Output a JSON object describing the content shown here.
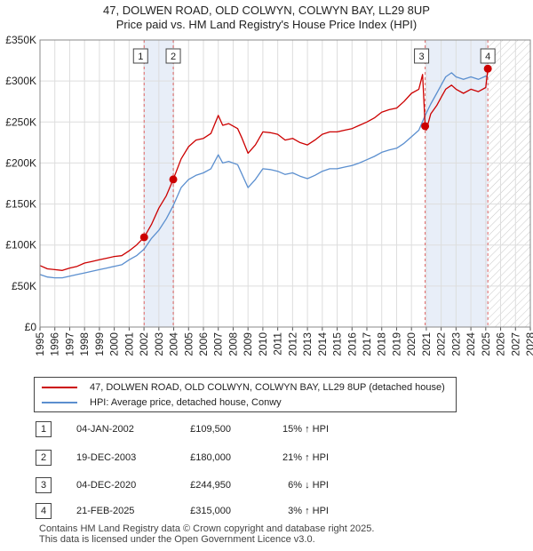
{
  "chart_data": {
    "type": "line",
    "title": "47, DOLWEN ROAD, OLD COLWYN, COLWYN BAY, LL29 8UP",
    "subtitle": "Price paid vs. HM Land Registry's House Price Index (HPI)",
    "xlabel": "",
    "ylabel": "",
    "xlim": [
      1995,
      2028
    ],
    "ylim": [
      0,
      350000
    ],
    "y_ticks": [
      {
        "value": 0,
        "label": "£0"
      },
      {
        "value": 50000,
        "label": "£50K"
      },
      {
        "value": 100000,
        "label": "£100K"
      },
      {
        "value": 150000,
        "label": "£150K"
      },
      {
        "value": 200000,
        "label": "£200K"
      },
      {
        "value": 250000,
        "label": "£250K"
      },
      {
        "value": 300000,
        "label": "£300K"
      },
      {
        "value": 350000,
        "label": "£350K"
      }
    ],
    "x_ticks": [
      "1995",
      "1996",
      "1997",
      "1998",
      "1999",
      "2000",
      "2001",
      "2002",
      "2003",
      "2004",
      "2005",
      "2006",
      "2007",
      "2008",
      "2009",
      "2010",
      "2011",
      "2012",
      "2013",
      "2014",
      "2015",
      "2016",
      "2017",
      "2018",
      "2019",
      "2020",
      "2021",
      "2022",
      "2023",
      "2024",
      "2025",
      "2026",
      "2027",
      "2028"
    ],
    "grid": true,
    "legend_position": "below",
    "shaded_ranges": [
      [
        2002.01,
        2003.97
      ],
      [
        2020.92,
        2025.14
      ]
    ],
    "future_hatch_from": 2025.14,
    "series": [
      {
        "name": "47, DOLWEN ROAD, OLD COLWYN, COLWYN BAY, LL29 8UP (detached house)",
        "color": "#cc0000",
        "points": [
          [
            1995.0,
            75000
          ],
          [
            1995.5,
            71000
          ],
          [
            1996.0,
            70000
          ],
          [
            1996.5,
            69000
          ],
          [
            1997.0,
            72000
          ],
          [
            1997.5,
            74000
          ],
          [
            1998.0,
            78000
          ],
          [
            1998.5,
            80000
          ],
          [
            1999.0,
            82000
          ],
          [
            1999.5,
            84000
          ],
          [
            2000.0,
            86000
          ],
          [
            2000.5,
            87000
          ],
          [
            2001.0,
            93000
          ],
          [
            2001.5,
            100000
          ],
          [
            2002.01,
            109500
          ],
          [
            2002.5,
            125000
          ],
          [
            2003.0,
            145000
          ],
          [
            2003.5,
            160000
          ],
          [
            2003.97,
            180000
          ],
          [
            2004.5,
            205000
          ],
          [
            2005.0,
            220000
          ],
          [
            2005.5,
            228000
          ],
          [
            2006.0,
            230000
          ],
          [
            2006.5,
            236000
          ],
          [
            2007.0,
            258000
          ],
          [
            2007.3,
            246000
          ],
          [
            2007.7,
            248000
          ],
          [
            2008.3,
            242000
          ],
          [
            2008.6,
            230000
          ],
          [
            2009.0,
            212000
          ],
          [
            2009.5,
            222000
          ],
          [
            2010.0,
            238000
          ],
          [
            2010.5,
            237000
          ],
          [
            2011.0,
            235000
          ],
          [
            2011.5,
            228000
          ],
          [
            2012.0,
            230000
          ],
          [
            2012.5,
            225000
          ],
          [
            2013.0,
            222000
          ],
          [
            2013.5,
            228000
          ],
          [
            2014.0,
            235000
          ],
          [
            2014.5,
            238000
          ],
          [
            2015.0,
            238000
          ],
          [
            2015.5,
            240000
          ],
          [
            2016.0,
            242000
          ],
          [
            2016.5,
            246000
          ],
          [
            2017.0,
            250000
          ],
          [
            2017.5,
            255000
          ],
          [
            2018.0,
            262000
          ],
          [
            2018.5,
            265000
          ],
          [
            2019.0,
            267000
          ],
          [
            2019.5,
            275000
          ],
          [
            2020.0,
            285000
          ],
          [
            2020.5,
            290000
          ],
          [
            2020.75,
            308000
          ],
          [
            2020.92,
            244950
          ],
          [
            2021.0,
            240000
          ],
          [
            2021.3,
            260000
          ],
          [
            2021.7,
            270000
          ],
          [
            2022.0,
            280000
          ],
          [
            2022.3,
            290000
          ],
          [
            2022.7,
            295000
          ],
          [
            2023.0,
            290000
          ],
          [
            2023.5,
            285000
          ],
          [
            2024.0,
            290000
          ],
          [
            2024.5,
            287000
          ],
          [
            2025.0,
            292000
          ],
          [
            2025.14,
            315000
          ]
        ]
      },
      {
        "name": "HPI: Average price, detached house, Conwy",
        "color": "#5b8fcf",
        "points": [
          [
            1995.0,
            64000
          ],
          [
            1995.5,
            61000
          ],
          [
            1996.0,
            60000
          ],
          [
            1996.5,
            60000
          ],
          [
            1997.0,
            62000
          ],
          [
            1997.5,
            64000
          ],
          [
            1998.0,
            66000
          ],
          [
            1998.5,
            68000
          ],
          [
            1999.0,
            70000
          ],
          [
            1999.5,
            72000
          ],
          [
            2000.0,
            74000
          ],
          [
            2000.5,
            76000
          ],
          [
            2001.0,
            82000
          ],
          [
            2001.5,
            87000
          ],
          [
            2002.01,
            95000
          ],
          [
            2002.5,
            108000
          ],
          [
            2003.0,
            118000
          ],
          [
            2003.5,
            132000
          ],
          [
            2003.97,
            148000
          ],
          [
            2004.5,
            170000
          ],
          [
            2005.0,
            180000
          ],
          [
            2005.5,
            185000
          ],
          [
            2006.0,
            188000
          ],
          [
            2006.5,
            193000
          ],
          [
            2007.0,
            210000
          ],
          [
            2007.3,
            200000
          ],
          [
            2007.7,
            202000
          ],
          [
            2008.3,
            198000
          ],
          [
            2008.6,
            186000
          ],
          [
            2009.0,
            170000
          ],
          [
            2009.5,
            180000
          ],
          [
            2010.0,
            193000
          ],
          [
            2010.5,
            192000
          ],
          [
            2011.0,
            190000
          ],
          [
            2011.5,
            186000
          ],
          [
            2012.0,
            188000
          ],
          [
            2012.5,
            184000
          ],
          [
            2013.0,
            181000
          ],
          [
            2013.5,
            185000
          ],
          [
            2014.0,
            190000
          ],
          [
            2014.5,
            193000
          ],
          [
            2015.0,
            193000
          ],
          [
            2015.5,
            195000
          ],
          [
            2016.0,
            197000
          ],
          [
            2016.5,
            200000
          ],
          [
            2017.0,
            204000
          ],
          [
            2017.5,
            208000
          ],
          [
            2018.0,
            213000
          ],
          [
            2018.5,
            216000
          ],
          [
            2019.0,
            218000
          ],
          [
            2019.5,
            224000
          ],
          [
            2020.0,
            232000
          ],
          [
            2020.5,
            240000
          ],
          [
            2020.92,
            258000
          ],
          [
            2021.3,
            272000
          ],
          [
            2021.7,
            285000
          ],
          [
            2022.0,
            295000
          ],
          [
            2022.3,
            305000
          ],
          [
            2022.7,
            310000
          ],
          [
            2023.0,
            305000
          ],
          [
            2023.5,
            302000
          ],
          [
            2024.0,
            305000
          ],
          [
            2024.5,
            302000
          ],
          [
            2025.0,
            306000
          ],
          [
            2025.14,
            305000
          ]
        ]
      }
    ],
    "markers": [
      {
        "label": "1",
        "x": 2002.01,
        "y": 109500
      },
      {
        "label": "2",
        "x": 2003.97,
        "y": 180000
      },
      {
        "label": "3",
        "x": 2020.92,
        "y": 244950
      },
      {
        "label": "4",
        "x": 2025.14,
        "y": 315000
      }
    ]
  },
  "legend": {
    "property_label": "47, DOLWEN ROAD, OLD COLWYN, COLWYN BAY, LL29 8UP (detached house)",
    "hpi_label": "HPI: Average price, detached house, Conwy",
    "property_color": "#cc0000",
    "hpi_color": "#5b8fcf"
  },
  "transactions": [
    {
      "num": "1",
      "date": "04-JAN-2002",
      "price": "£109,500",
      "hpi": "15% ↑ HPI"
    },
    {
      "num": "2",
      "date": "19-DEC-2003",
      "price": "£180,000",
      "hpi": "21% ↑ HPI"
    },
    {
      "num": "3",
      "date": "04-DEC-2020",
      "price": "£244,950",
      "hpi": "6% ↓ HPI"
    },
    {
      "num": "4",
      "date": "21-FEB-2025",
      "price": "£315,000",
      "hpi": "3% ↑ HPI"
    }
  ],
  "footer": {
    "line1": "Contains HM Land Registry data © Crown copyright and database right 2025.",
    "line2": "This data is licensed under the Open Government Licence v3.0."
  }
}
